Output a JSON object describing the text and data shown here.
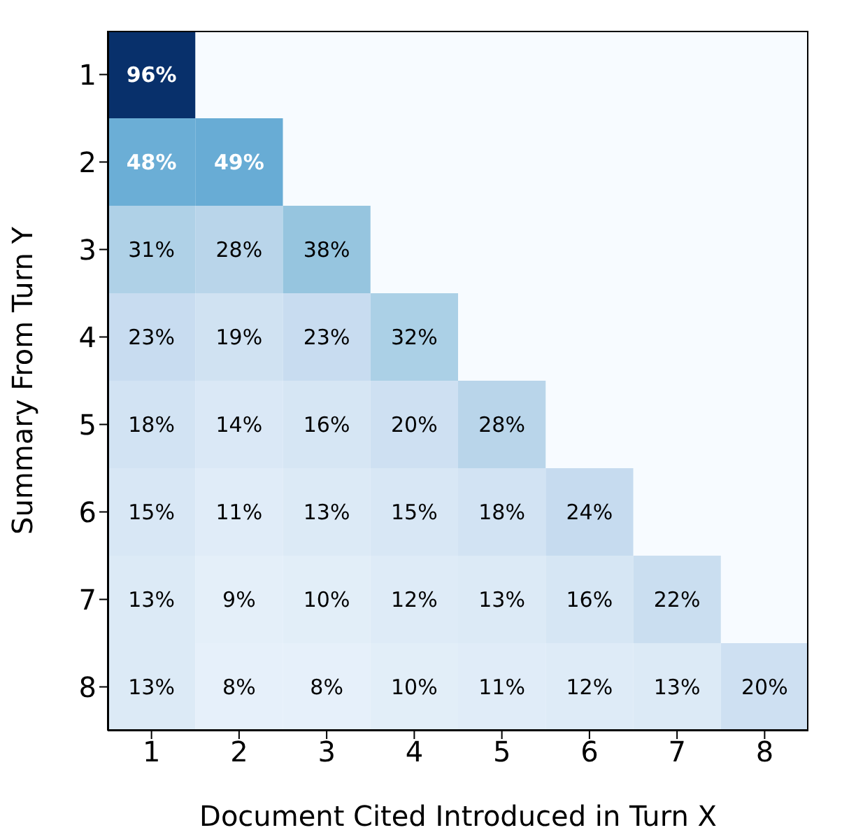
{
  "chart_data": {
    "type": "heatmap",
    "xlabel": "Document Cited Introduced in Turn X",
    "ylabel": "Summary From Turn Y",
    "categories": [
      "1",
      "2",
      "3",
      "4",
      "5",
      "6",
      "7",
      "8"
    ],
    "y_categories": [
      "1",
      "2",
      "3",
      "4",
      "5",
      "6",
      "7",
      "8"
    ],
    "cells": [
      [
        96,
        null,
        null,
        null,
        null,
        null,
        null,
        null
      ],
      [
        48,
        49,
        null,
        null,
        null,
        null,
        null,
        null
      ],
      [
        31,
        28,
        38,
        null,
        null,
        null,
        null,
        null
      ],
      [
        23,
        19,
        23,
        32,
        null,
        null,
        null,
        null
      ],
      [
        18,
        14,
        16,
        20,
        28,
        null,
        null,
        null
      ],
      [
        15,
        11,
        13,
        15,
        18,
        24,
        null,
        null
      ],
      [
        13,
        9,
        10,
        12,
        13,
        16,
        22,
        null
      ],
      [
        13,
        8,
        8,
        10,
        11,
        12,
        13,
        20
      ]
    ],
    "cell_labels": [
      [
        "96%",
        null,
        null,
        null,
        null,
        null,
        null,
        null
      ],
      [
        "48%",
        "49%",
        null,
        null,
        null,
        null,
        null,
        null
      ],
      [
        "31%",
        "28%",
        "38%",
        null,
        null,
        null,
        null,
        null
      ],
      [
        "23%",
        "19%",
        "23%",
        "32%",
        null,
        null,
        null,
        null
      ],
      [
        "18%",
        "14%",
        "16%",
        "20%",
        "28%",
        null,
        null,
        null
      ],
      [
        "15%",
        "11%",
        "13%",
        "15%",
        "18%",
        "24%",
        null,
        null
      ],
      [
        "13%",
        "9%",
        "10%",
        "12%",
        "13%",
        "16%",
        "22%",
        null
      ],
      [
        "13%",
        "8%",
        "8%",
        "10%",
        "11%",
        "12%",
        "13%",
        "20%"
      ]
    ]
  }
}
